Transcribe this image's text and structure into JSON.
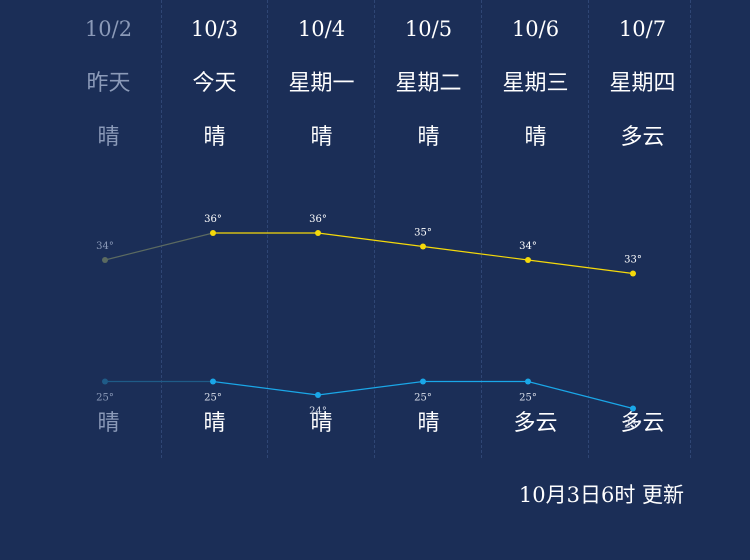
{
  "days": [
    {
      "date": "10/2",
      "name": "昨天",
      "day_weather": "晴",
      "night_weather": "晴",
      "past": true
    },
    {
      "date": "10/3",
      "name": "今天",
      "day_weather": "晴",
      "night_weather": "晴",
      "past": false
    },
    {
      "date": "10/4",
      "name": "星期一",
      "day_weather": "晴",
      "night_weather": "晴",
      "past": false
    },
    {
      "date": "10/5",
      "name": "星期二",
      "day_weather": "晴",
      "night_weather": "晴",
      "past": false
    },
    {
      "date": "10/6",
      "name": "星期三",
      "day_weather": "晴",
      "night_weather": "多云",
      "past": false
    },
    {
      "date": "10/7",
      "name": "星期四",
      "day_weather": "多云",
      "night_weather": "多云",
      "past": false
    }
  ],
  "chart_data": {
    "type": "line",
    "categories": [
      "10/2",
      "10/3",
      "10/4",
      "10/5",
      "10/6",
      "10/7"
    ],
    "series": [
      {
        "values": [
          34,
          36,
          36,
          35,
          34,
          33
        ],
        "color": "#f5d90a"
      },
      {
        "values": [
          25,
          25,
          24,
          25,
          25,
          23
        ],
        "color": "#1aa7e8"
      }
    ],
    "unit": "°",
    "past_color_high": "#5b6a60",
    "past_color_low": "#1f5b87",
    "grid": false,
    "legend": "none"
  },
  "footer": {
    "update_text": "10月3日6时 更新"
  }
}
